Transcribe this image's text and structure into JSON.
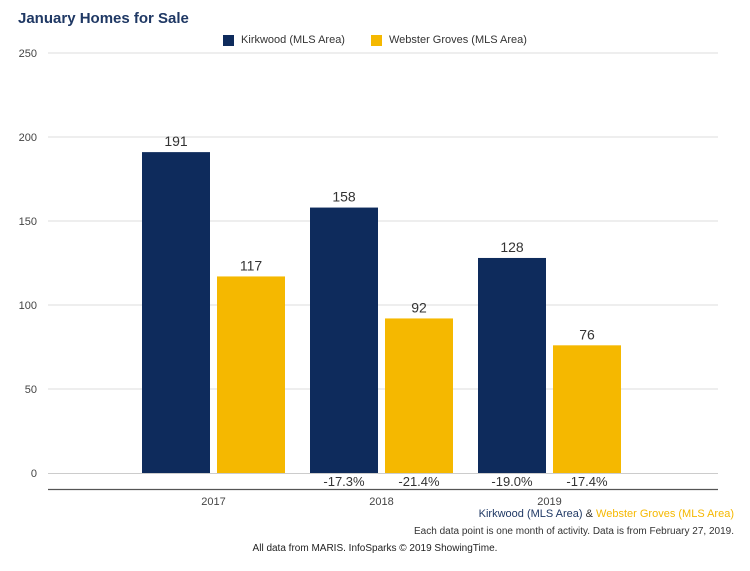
{
  "chart_data": {
    "type": "bar",
    "title": "January Homes for Sale",
    "categories": [
      "2017",
      "2018",
      "2019"
    ],
    "series": [
      {
        "name": "Kirkwood (MLS Area)",
        "color": "#0e2b5c",
        "values": [
          191,
          158,
          128
        ],
        "changes": [
          "",
          "-17.3%",
          "-19.0%"
        ]
      },
      {
        "name": "Webster Groves (MLS Area)",
        "color": "#f5b800",
        "values": [
          117,
          92,
          76
        ],
        "changes": [
          "",
          "-21.4%",
          "-17.4%"
        ]
      }
    ],
    "yticks": [
      "0",
      "50",
      "100",
      "150",
      "200",
      "250"
    ],
    "ylim": [
      0,
      250
    ],
    "grid": true,
    "legend": "top-center"
  },
  "footer": {
    "series1": "Kirkwood (MLS Area)",
    "amp": " & ",
    "series2": "Webster Groves (MLS Area)",
    "note": "Each data point is one month of activity. Data is from February 27, 2019.",
    "credit": "All data from MARIS. InfoSparks © 2019 ShowingTime."
  }
}
